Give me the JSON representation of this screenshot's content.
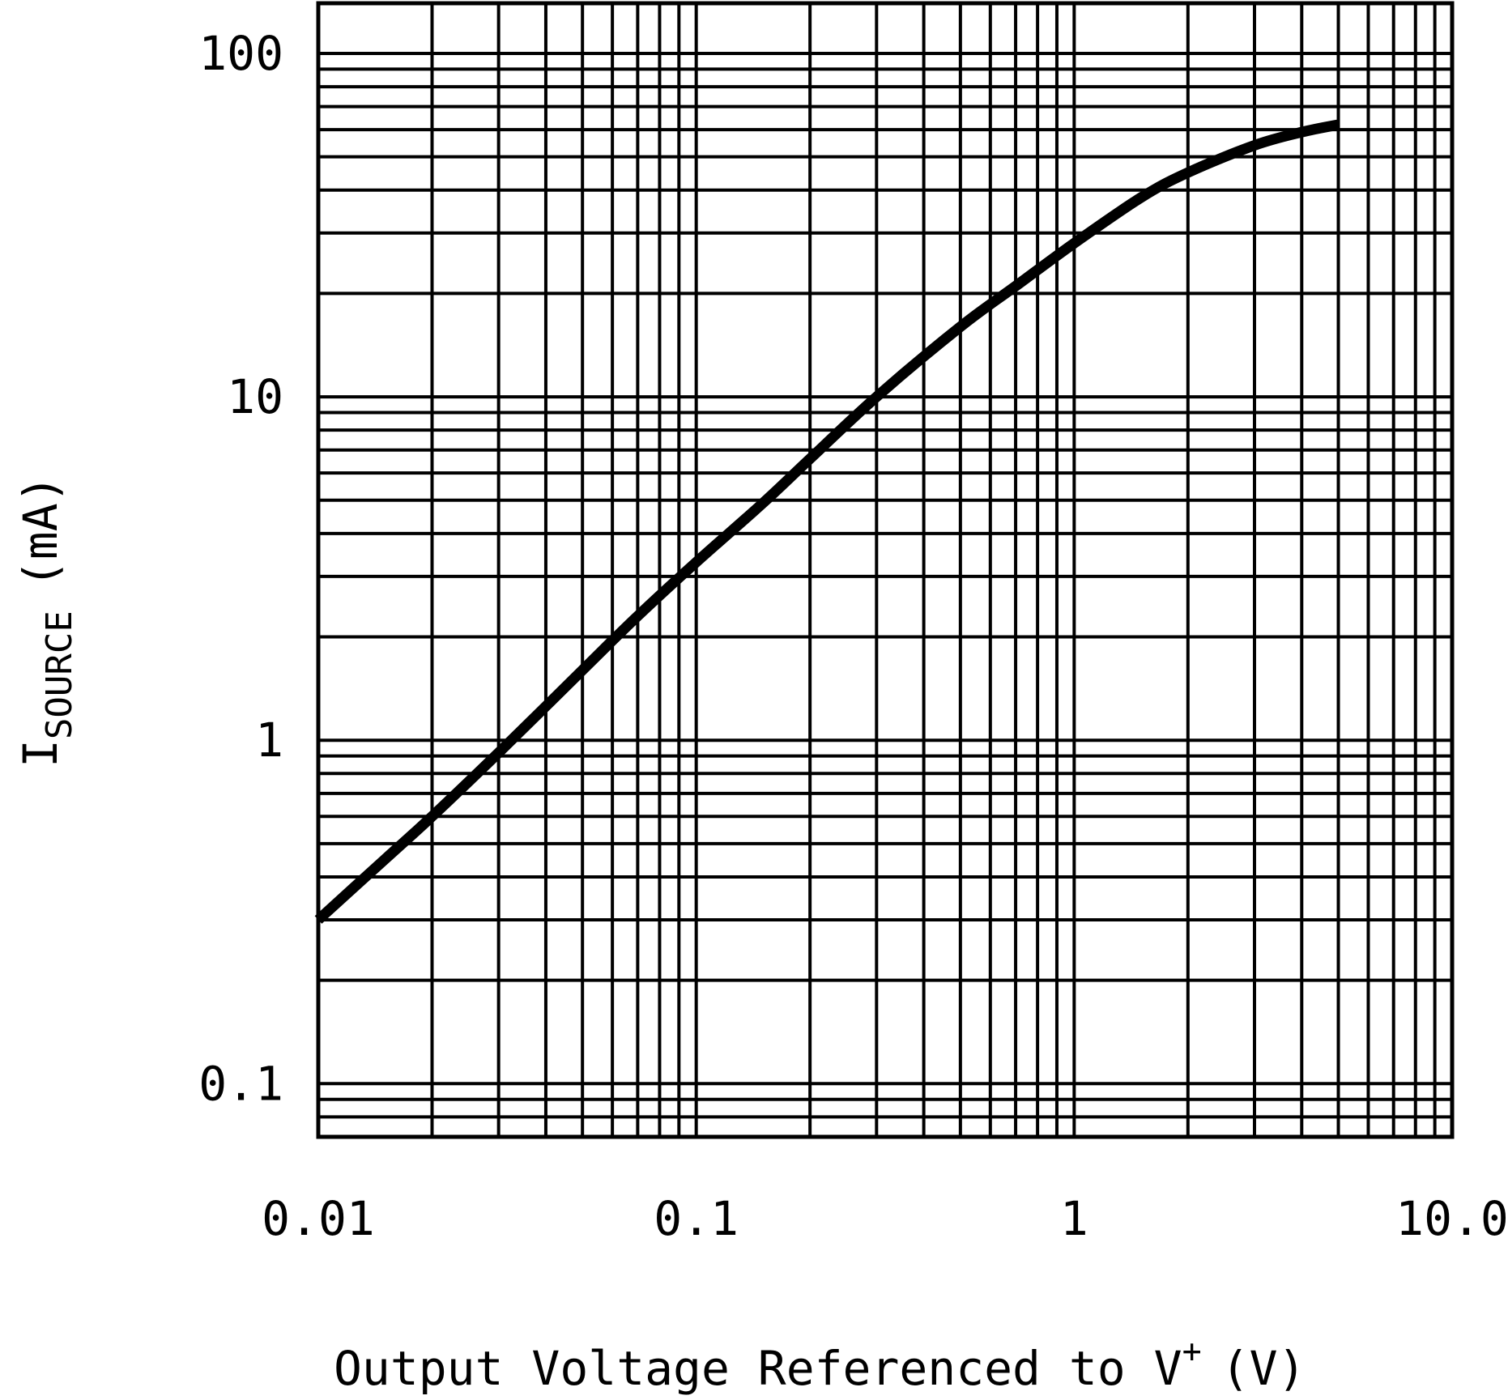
{
  "chart_data": {
    "type": "line",
    "title": "",
    "xlabel": {
      "text": "Output Voltage Referenced to V",
      "superscript": "+",
      "unit": "(V)"
    },
    "ylabel": {
      "text": "I",
      "subscript": "SOURCE",
      "unit": "(mA)"
    },
    "x_scale": "log",
    "y_scale": "log",
    "xlim": [
      0.01,
      10.0
    ],
    "ylim": [
      0.07,
      140
    ],
    "x_ticks": [
      {
        "value": 0.01,
        "label": "0.01"
      },
      {
        "value": 0.1,
        "label": "0.1"
      },
      {
        "value": 1,
        "label": "1"
      },
      {
        "value": 10,
        "label": "10.0"
      }
    ],
    "y_ticks": [
      {
        "value": 0.1,
        "label": "0.1"
      },
      {
        "value": 1,
        "label": "1"
      },
      {
        "value": 10,
        "label": "10"
      },
      {
        "value": 100,
        "label": "100"
      }
    ],
    "grid": true,
    "line_color": "#000000",
    "grid_color": "#000000",
    "series": [
      {
        "x": [
          0.01,
          0.015,
          0.02,
          0.03,
          0.05,
          0.07,
          0.1,
          0.15,
          0.2,
          0.3,
          0.5,
          0.7,
          1.0,
          1.5,
          2.0,
          3.0,
          4.0,
          5.0
        ],
        "y": [
          0.3,
          0.45,
          0.6,
          0.92,
          1.6,
          2.3,
          3.3,
          4.9,
          6.6,
          10.0,
          16.0,
          21.0,
          28.0,
          38.0,
          45.0,
          54.0,
          59.0,
          62.0
        ]
      }
    ]
  }
}
